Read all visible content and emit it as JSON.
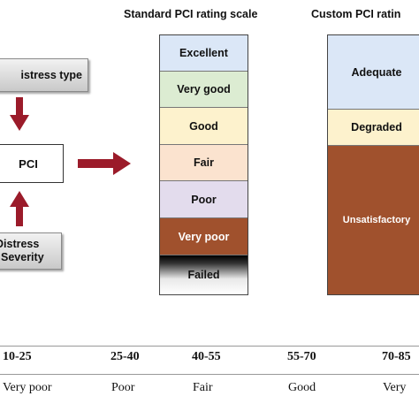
{
  "colors": {
    "arrow": "#9b1b2a",
    "excellent": "#dbe7f7",
    "very_good": "#dcecd2",
    "good": "#fdf2cd",
    "fair": "#fbe3cf",
    "poor": "#e3dced",
    "very_poor": "#a0512d",
    "failed_top": "#000000",
    "failed_bottom": "#ffffff",
    "adequate": "#dbe7f7",
    "degraded": "#fdf2cd",
    "unsatisfactory": "#a0512d"
  },
  "left": {
    "distress_type": "istress type",
    "pci": "PCI",
    "distress_severity_line1": "Distress",
    "distress_severity_line2": "Severity"
  },
  "standard_scale": {
    "title": "Standard PCI rating scale",
    "ratings": [
      "Excellent",
      "Very good",
      "Good",
      "Fair",
      "Poor",
      "Very poor",
      "Failed"
    ]
  },
  "custom_scale": {
    "title": "Custom PCI ratin",
    "ratings": [
      "Adequate",
      "Degraded",
      "Unsatisfactory"
    ]
  },
  "bottom_table": {
    "ranges": [
      "10-25",
      "25-40",
      "40-55",
      "55-70",
      "70-85"
    ],
    "labels": [
      "Very poor",
      "Poor",
      "Fair",
      "Good",
      "Very"
    ]
  }
}
